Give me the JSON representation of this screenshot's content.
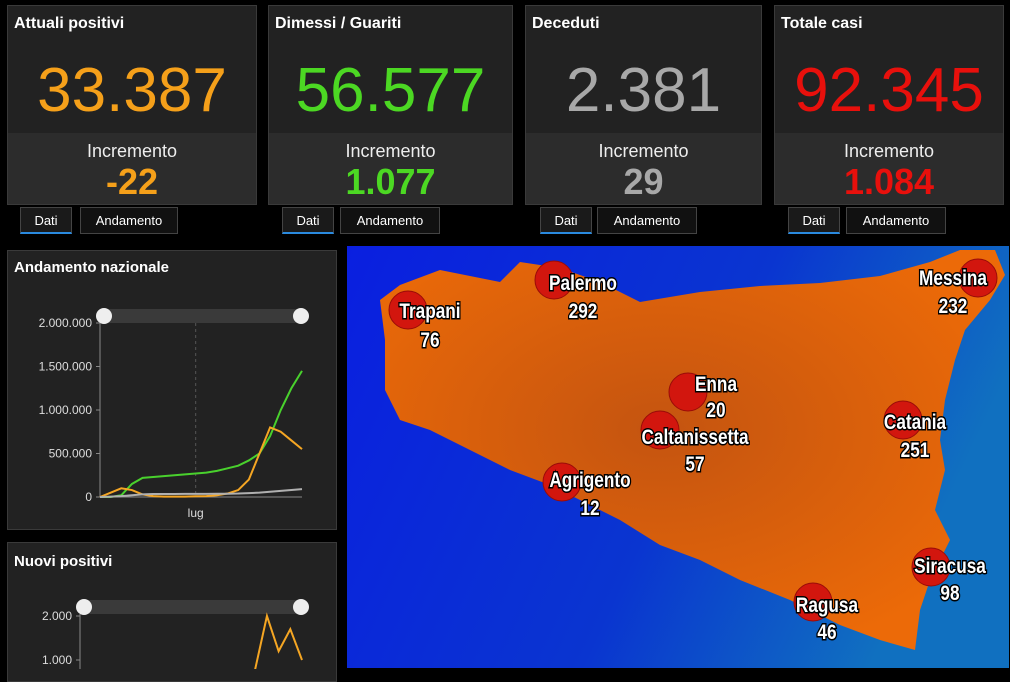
{
  "cards": [
    {
      "title": "Attuali positivi",
      "value": "33.387",
      "color": "#f5a01a",
      "increment_label": "Incremento",
      "increment": "-22",
      "tabs": [
        "Dati",
        "Andamento"
      ]
    },
    {
      "title": "Dimessi / Guariti",
      "value": "56.577",
      "color": "#4cd823",
      "increment_label": "Incremento",
      "increment": "1.077",
      "tabs": [
        "Dati",
        "Andamento"
      ]
    },
    {
      "title": "Deceduti",
      "value": "2.381",
      "color": "#a8a8a8",
      "increment_label": "Incremento",
      "increment": "29",
      "tabs": [
        "Dati",
        "Andamento"
      ]
    },
    {
      "title": "Totale casi",
      "value": "92.345",
      "color": "#e8100c",
      "increment_label": "Incremento",
      "increment": "1.084",
      "tabs": [
        "Dati",
        "Andamento"
      ]
    }
  ],
  "charts": [
    {
      "type": "line",
      "title": "Andamento nazionale",
      "categories": [
        null,
        null,
        null,
        null,
        null,
        null,
        null,
        null,
        null,
        "lug",
        null,
        null,
        null,
        null,
        null,
        null,
        null,
        null,
        null,
        null
      ],
      "series": [
        {
          "color": "#49d12d",
          "values": [
            0,
            0,
            20000,
            150000,
            220000,
            230000,
            240000,
            250000,
            260000,
            270000,
            280000,
            300000,
            330000,
            360000,
            420000,
            500000,
            700000,
            1000000,
            1250000,
            1450000
          ]
        },
        {
          "color": "#f5a623",
          "values": [
            0,
            50000,
            100000,
            80000,
            30000,
            10000,
            5000,
            5000,
            5000,
            8000,
            10000,
            20000,
            40000,
            80000,
            200000,
            500000,
            800000,
            750000,
            650000,
            550000
          ]
        },
        {
          "color": "#b0b0b0",
          "values": [
            0,
            5000,
            10000,
            20000,
            30000,
            35000,
            35000,
            35000,
            36000,
            36000,
            36000,
            37000,
            38000,
            40000,
            45000,
            50000,
            60000,
            70000,
            80000,
            90000
          ]
        }
      ],
      "ylim": [
        0,
        2000000
      ],
      "yticks": [
        0,
        {
          "value": 500000,
          "label": "500.000"
        },
        {
          "value": 1000000,
          "label": "1.000.000"
        },
        {
          "value": 1500000,
          "label": "1.500.000"
        },
        {
          "value": 2000000,
          "label": "2.000.000"
        }
      ]
    },
    {
      "type": "line",
      "title": "Nuovi positivi",
      "series": [
        {
          "color": "#f5a623",
          "values": [
            0,
            0,
            0,
            0,
            0,
            0,
            0,
            0,
            0,
            0,
            0,
            0,
            0,
            0,
            0,
            800,
            2000,
            1200,
            1700,
            1000
          ]
        }
      ],
      "ylim": [
        0,
        2000
      ],
      "yticks": [
        {
          "value": 1000,
          "label": "1.000"
        },
        {
          "value": 2000,
          "label": "2.000"
        }
      ]
    }
  ],
  "map": {
    "cities": [
      {
        "name": "Trapani",
        "value": "76"
      },
      {
        "name": "Palermo",
        "value": "292"
      },
      {
        "name": "Messina",
        "value": "232"
      },
      {
        "name": "Enna",
        "value": "20"
      },
      {
        "name": "Caltanissetta",
        "value": "57"
      },
      {
        "name": "Catania",
        "value": "251"
      },
      {
        "name": "Agrigento",
        "value": "12"
      },
      {
        "name": "Siracusa",
        "value": "98"
      },
      {
        "name": "Ragusa",
        "value": "46"
      }
    ]
  }
}
